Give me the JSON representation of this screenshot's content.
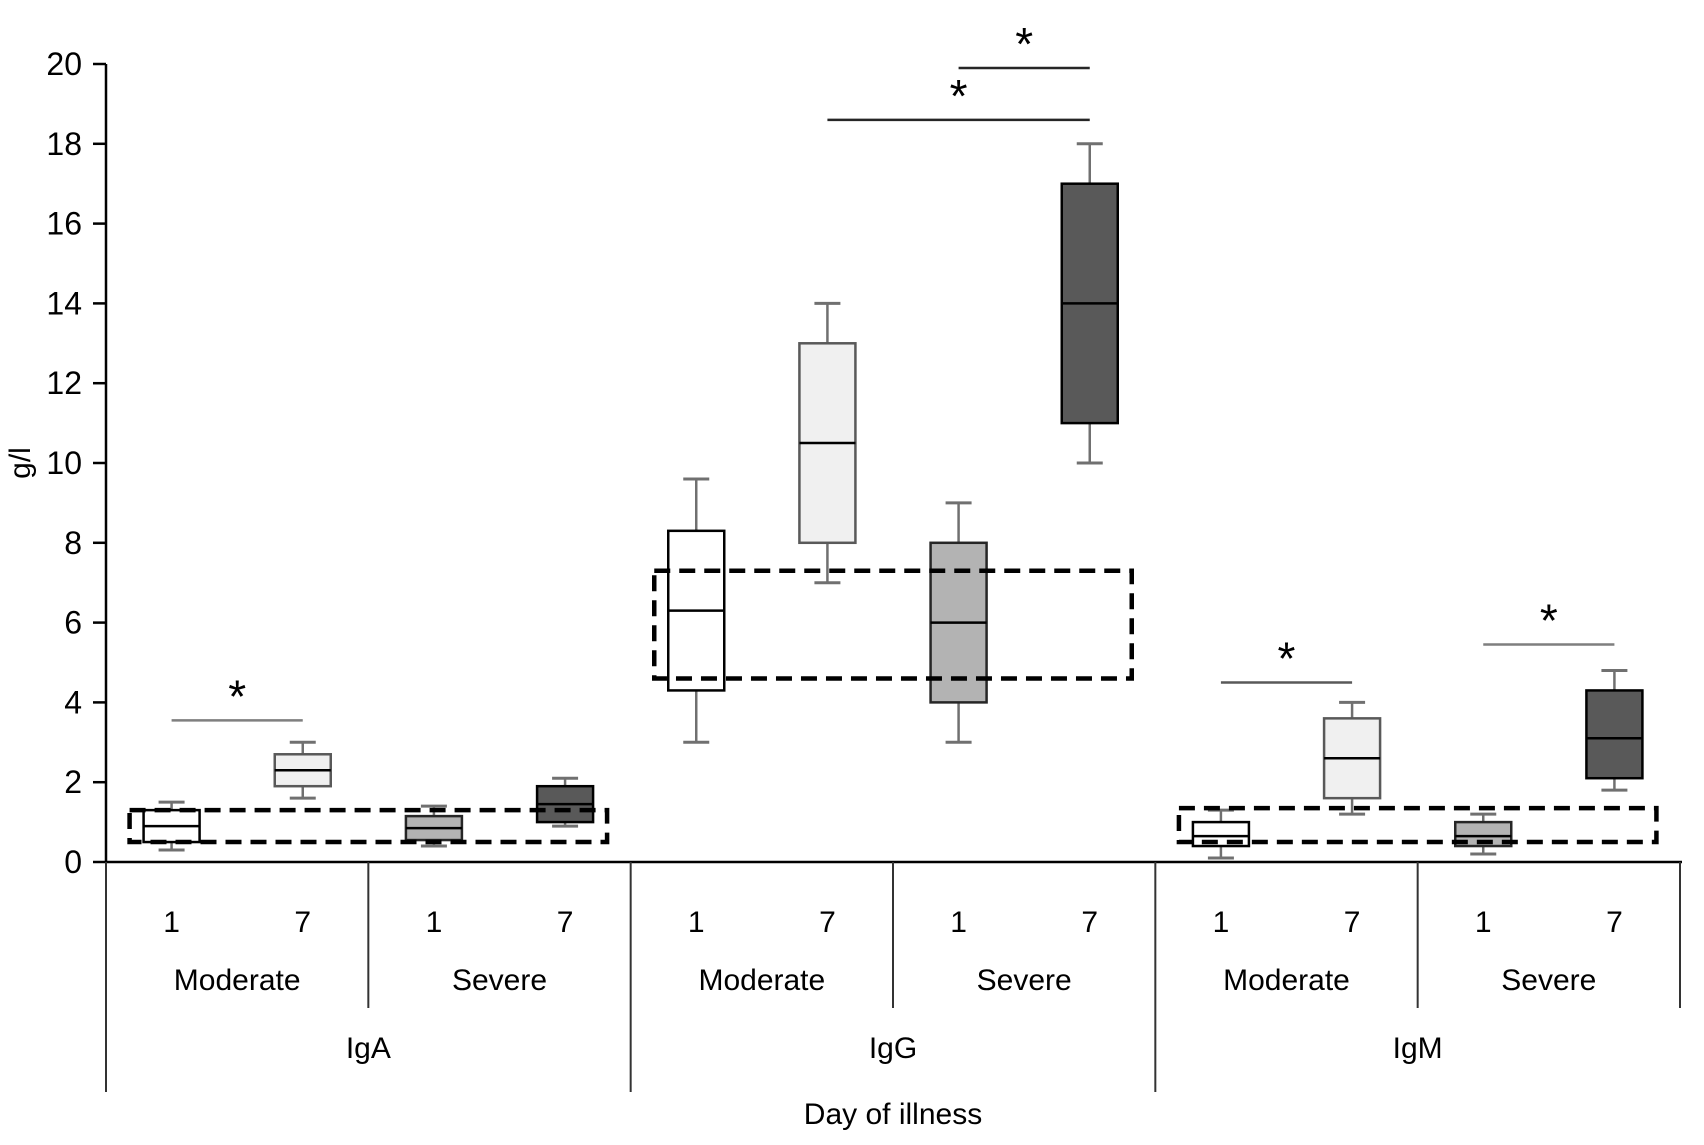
{
  "chart_data": {
    "type": "boxplot",
    "title": "",
    "ylabel": "g/l",
    "xlabel": "Day of illness",
    "ylim": [
      0,
      20
    ],
    "ytick_step": 2,
    "grid": false,
    "legend": false,
    "x_axis": {
      "groups": [
        {
          "label": "IgA",
          "subgroups": [
            {
              "label": "Moderate",
              "days": [
                "1",
                "7"
              ]
            },
            {
              "label": "Severe",
              "days": [
                "1",
                "7"
              ]
            }
          ]
        },
        {
          "label": "IgG",
          "subgroups": [
            {
              "label": "Moderate",
              "days": [
                "1",
                "7"
              ]
            },
            {
              "label": "Severe",
              "days": [
                "1",
                "7"
              ]
            }
          ]
        },
        {
          "label": "IgM",
          "subgroups": [
            {
              "label": "Moderate",
              "days": [
                "1",
                "7"
              ]
            },
            {
              "label": "Severe",
              "days": [
                "1",
                "7"
              ]
            }
          ]
        }
      ]
    },
    "boxes": [
      {
        "key": "IgA.Moderate.1",
        "whisker_low": 0.3,
        "q1": 0.5,
        "median": 0.9,
        "q3": 1.3,
        "whisker_high": 1.5,
        "fill": "#ffffff",
        "border": "#000000"
      },
      {
        "key": "IgA.Moderate.7",
        "whisker_low": 1.6,
        "q1": 1.9,
        "median": 2.3,
        "q3": 2.7,
        "whisker_high": 3.0,
        "fill": "#f0f0f0",
        "border": "#595959"
      },
      {
        "key": "IgA.Severe.1",
        "whisker_low": 0.4,
        "q1": 0.55,
        "median": 0.85,
        "q3": 1.15,
        "whisker_high": 1.4,
        "fill": "#b3b3b3",
        "border": "#262626"
      },
      {
        "key": "IgA.Severe.7",
        "whisker_low": 0.9,
        "q1": 1.0,
        "median": 1.45,
        "q3": 1.9,
        "whisker_high": 2.1,
        "fill": "#595959",
        "border": "#000000"
      },
      {
        "key": "IgG.Moderate.1",
        "whisker_low": 3.0,
        "q1": 4.3,
        "median": 6.3,
        "q3": 8.3,
        "whisker_high": 9.6,
        "fill": "#ffffff",
        "border": "#000000"
      },
      {
        "key": "IgG.Moderate.7",
        "whisker_low": 7.0,
        "q1": 8.0,
        "median": 10.5,
        "q3": 13.0,
        "whisker_high": 14.0,
        "fill": "#f0f0f0",
        "border": "#595959"
      },
      {
        "key": "IgG.Severe.1",
        "whisker_low": 3.0,
        "q1": 4.0,
        "median": 6.0,
        "q3": 8.0,
        "whisker_high": 9.0,
        "fill": "#b3b3b3",
        "border": "#262626"
      },
      {
        "key": "IgG.Severe.7",
        "whisker_low": 10.0,
        "q1": 11.0,
        "median": 14.0,
        "q3": 17.0,
        "whisker_high": 18.0,
        "fill": "#595959",
        "border": "#000000"
      },
      {
        "key": "IgM.Moderate.1",
        "whisker_low": 0.1,
        "q1": 0.4,
        "median": 0.65,
        "q3": 1.0,
        "whisker_high": 1.3,
        "fill": "#ffffff",
        "border": "#000000"
      },
      {
        "key": "IgM.Moderate.7",
        "whisker_low": 1.2,
        "q1": 1.6,
        "median": 2.6,
        "q3": 3.6,
        "whisker_high": 4.0,
        "fill": "#f0f0f0",
        "border": "#595959"
      },
      {
        "key": "IgM.Severe.1",
        "whisker_low": 0.2,
        "q1": 0.4,
        "median": 0.65,
        "q3": 1.0,
        "whisker_high": 1.2,
        "fill": "#b3b3b3",
        "border": "#262626"
      },
      {
        "key": "IgM.Severe.7",
        "whisker_low": 1.8,
        "q1": 2.1,
        "median": 3.1,
        "q3": 4.3,
        "whisker_high": 4.8,
        "fill": "#595959",
        "border": "#000000"
      }
    ],
    "reference_ranges": [
      {
        "group": "IgA",
        "from": "IgA.Moderate.1",
        "to": "IgA.Severe.7",
        "y_low": 0.5,
        "y_high": 1.3
      },
      {
        "group": "IgG",
        "from": "IgG.Moderate.1",
        "to": "IgG.Severe.7",
        "y_low": 4.6,
        "y_high": 7.3
      },
      {
        "group": "IgM",
        "from": "IgM.Moderate.1",
        "to": "IgM.Severe.7",
        "y_low": 0.5,
        "y_high": 1.35
      }
    ],
    "significance": [
      {
        "from": "IgA.Moderate.1",
        "to": "IgA.Moderate.7",
        "y": 3.55,
        "label": "*",
        "line_color": "#7f7f7f"
      },
      {
        "from": "IgG.Moderate.7",
        "to": "IgG.Severe.7",
        "y": 18.6,
        "label": "*",
        "line_color": "#262626"
      },
      {
        "from": "IgG.Severe.1",
        "to": "IgG.Severe.7",
        "y": 19.9,
        "label": "*",
        "line_color": "#262626"
      },
      {
        "from": "IgM.Moderate.1",
        "to": "IgM.Moderate.7",
        "y": 4.5,
        "label": "*",
        "line_color": "#595959"
      },
      {
        "from": "IgM.Severe.1",
        "to": "IgM.Severe.7",
        "y": 5.45,
        "label": "*",
        "line_color": "#7f7f7f"
      }
    ],
    "colors": {
      "axis": "#000000",
      "divider": "#333333",
      "whisker": "#707070",
      "median": "#000000",
      "reference_dash": "#000000",
      "star": "#000000",
      "day1_moderate_fill": "#ffffff",
      "day7_moderate_fill": "#f0f0f0",
      "day1_severe_fill": "#b3b3b3",
      "day7_severe_fill": "#595959"
    }
  }
}
